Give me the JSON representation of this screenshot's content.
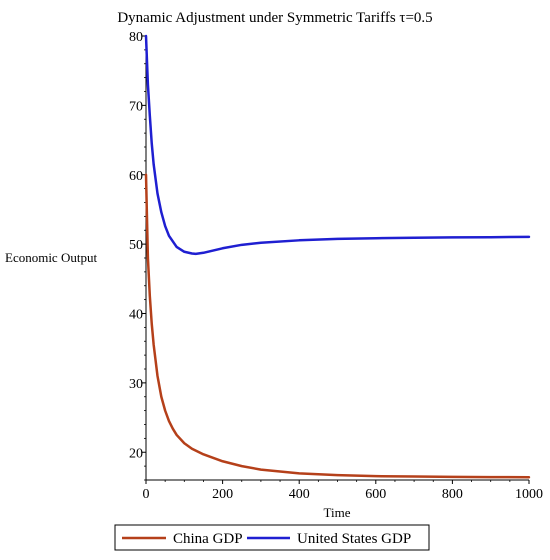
{
  "chart_data": {
    "type": "line",
    "title": "Dynamic Adjustment under Symmetric Tariffs τ=0.5",
    "xlabel": "Time",
    "ylabel": "Economic Output",
    "xlim": [
      0,
      1000
    ],
    "ylim": [
      16,
      80
    ],
    "xticks": [
      0,
      200,
      400,
      600,
      800,
      1000
    ],
    "yticks": [
      20,
      30,
      40,
      50,
      60,
      70,
      80
    ],
    "grid": false,
    "legend_position": "bottom",
    "series": [
      {
        "name": "China GDP",
        "color": "#b5401a",
        "x": [
          0,
          5,
          10,
          15,
          20,
          30,
          40,
          50,
          60,
          70,
          80,
          100,
          120,
          150,
          200,
          250,
          300,
          400,
          500,
          600,
          700,
          800,
          900,
          1000
        ],
        "y": [
          60,
          48,
          42.5,
          38.5,
          35.5,
          31,
          28,
          26,
          24.5,
          23.4,
          22.5,
          21.3,
          20.5,
          19.7,
          18.7,
          18.0,
          17.5,
          16.95,
          16.7,
          16.55,
          16.5,
          16.45,
          16.42,
          16.4
        ]
      },
      {
        "name": "United States GDP",
        "color": "#1f1fd1",
        "x": [
          0,
          5,
          10,
          15,
          20,
          30,
          40,
          50,
          60,
          80,
          100,
          120,
          130,
          150,
          200,
          250,
          300,
          400,
          500,
          600,
          700,
          800,
          900,
          1000
        ],
        "y": [
          80,
          73,
          68.5,
          64.5,
          61.5,
          57.3,
          54.6,
          52.6,
          51.2,
          49.6,
          48.9,
          48.65,
          48.6,
          48.75,
          49.4,
          49.9,
          50.2,
          50.55,
          50.75,
          50.85,
          50.92,
          50.97,
          51.0,
          51.05
        ]
      }
    ]
  }
}
